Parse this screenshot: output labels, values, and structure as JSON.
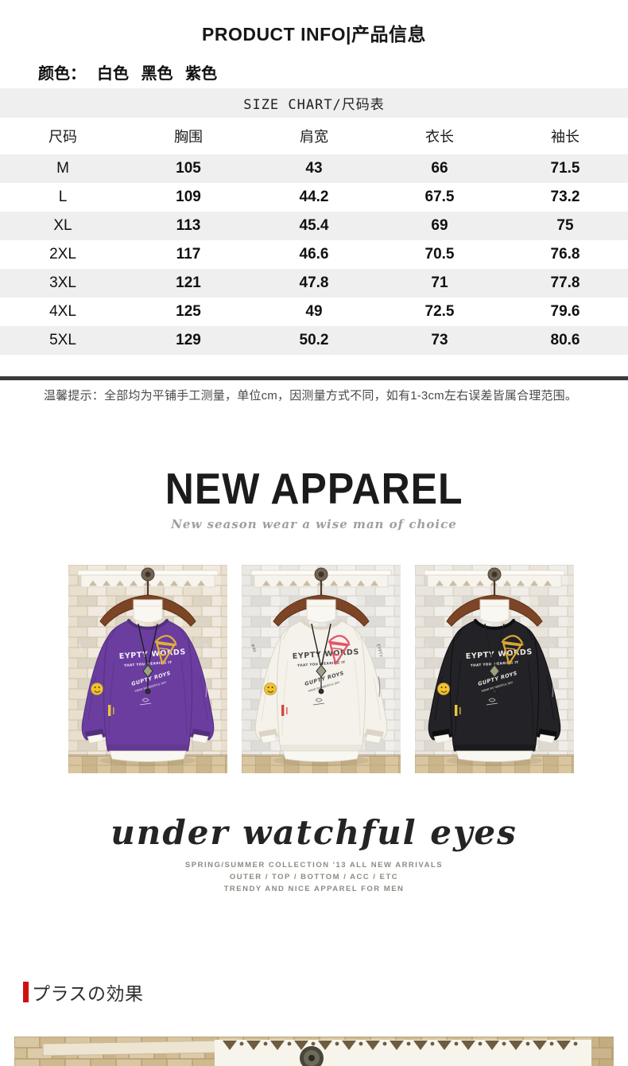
{
  "header": {
    "title": "PRODUCT INFO|产品信息"
  },
  "colors": {
    "label": "颜色：",
    "values": "白色 黑色 紫色"
  },
  "size_chart": {
    "title": "SIZE CHART/尺码表",
    "columns": [
      "尺码",
      "胸围",
      "肩宽",
      "衣长",
      "袖长"
    ],
    "rows": [
      [
        "M",
        "105",
        "43",
        "66",
        "71.5"
      ],
      [
        "L",
        "109",
        "44.2",
        "67.5",
        "73.2"
      ],
      [
        "XL",
        "113",
        "45.4",
        "69",
        "75"
      ],
      [
        "2XL",
        "117",
        "46.6",
        "70.5",
        "76.8"
      ],
      [
        "3XL",
        "121",
        "47.8",
        "71",
        "77.8"
      ],
      [
        "4XL",
        "125",
        "49",
        "72.5",
        "79.6"
      ],
      [
        "5XL",
        "129",
        "50.2",
        "73",
        "80.6"
      ]
    ]
  },
  "notice": {
    "text": "温馨提示：全部均为平铺手工测量，单位cm，因测量方式不同，如有1-3cm左右误差皆属合理范围。"
  },
  "banner": {
    "title": "NEW APPAREL",
    "subtitle": "New season wear a wise man of choice"
  },
  "products": [
    {
      "name": "purple-sweatshirt",
      "label": "紫色",
      "body_color": "#6a3d9f",
      "shade_color": "#53307e",
      "print_color": "#f3eef9",
      "cone_color": "#dfaf3a",
      "smiley_color": "#f1c231",
      "tag_color": "#e9c73c",
      "wall_color": "#e8dfcf",
      "wall_line": "#d4c7ae",
      "print_text": "EYPTY WORDS",
      "print_sub": "THAT YOU WEARING IT",
      "print_mid": "GUPTY ROYS",
      "print_mid_sub": "WEAR WONDERFUL DAY",
      "sleeve_text_left": "#40",
      "sleeve_text_right": "EYPTY"
    },
    {
      "name": "white-sweatshirt",
      "label": "白色",
      "body_color": "#f5f2eb",
      "shade_color": "#dcd5c5",
      "print_color": "#4b4a48",
      "cone_color": "#e2556a",
      "smiley_color": "#f1c231",
      "tag_color": "#d64545",
      "wall_color": "#eae8e4",
      "wall_line": "#d8d4cd",
      "print_text": "EYPTY WORDS",
      "print_sub": "THAT YOU WEARING IT",
      "print_mid": "GUPTY ROYS",
      "print_mid_sub": "WEAR WONDERFUL DAY",
      "sleeve_text_left": "#40",
      "sleeve_text_right": "EYPTY"
    },
    {
      "name": "black-sweatshirt",
      "label": "黑色",
      "body_color": "#232226",
      "shade_color": "#0e0e10",
      "print_color": "#eceae6",
      "cone_color": "#d9a733",
      "smiley_color": "#f1c231",
      "tag_color": "#e9c73c",
      "wall_color": "#e9e5dd",
      "wall_line": "#d6d0c4",
      "print_text": "EYPTY WORDS",
      "print_sub": "THAT YOU WEARING IT",
      "print_mid": "GUPTY ROYS",
      "print_mid_sub": "WEAR WONDERFUL DAY",
      "sleeve_text_left": "#40",
      "sleeve_text_right": "EYPTY"
    }
  ],
  "slogan": {
    "script": "under watchful eyes",
    "lines": [
      "SPRING/SUMMER COLLECTION '13 ALL NEW ARRIVALS",
      "OUTER / TOP / BOTTOM / ACC / ETC",
      "TRENDY AND NICE APPAREL FOR MEN"
    ]
  },
  "section2": {
    "title": "プラスの効果",
    "accent_color": "#cc1111"
  }
}
